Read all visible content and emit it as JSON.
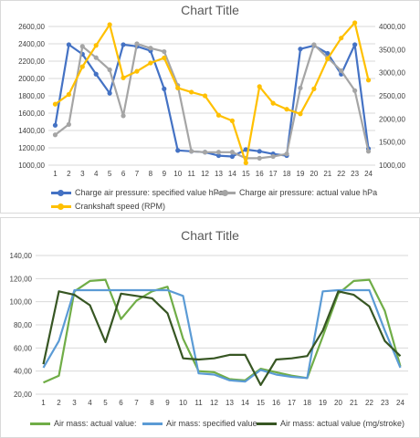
{
  "charts": [
    {
      "title": "Chart Title",
      "legend": [
        {
          "label": "Charge air pressure: specified value  hPa",
          "color": "#4472c4",
          "marker": true
        },
        {
          "label": "Charge air pressure: actual value  hPa",
          "color": "#a5a5a5",
          "marker": true
        },
        {
          "label": "Crankshaft speed (RPM)",
          "color": "#ffc000",
          "marker": true
        }
      ]
    },
    {
      "title": "Chart Title",
      "legend": [
        {
          "label": "Air mass: actual value:",
          "color": "#70ad47",
          "marker": false
        },
        {
          "label": "Air mass: specified value",
          "color": "#5b9bd5",
          "marker": false
        },
        {
          "label": "Air mass: actual value (mg/stroke)",
          "color": "#375623",
          "marker": false
        }
      ]
    }
  ],
  "chart_data": [
    {
      "type": "line",
      "title": "Chart Title",
      "x": [
        1,
        2,
        3,
        4,
        5,
        6,
        7,
        8,
        9,
        10,
        11,
        12,
        13,
        14,
        15,
        16,
        17,
        18,
        19,
        20,
        21,
        22,
        23,
        24
      ],
      "ylim": [
        1000,
        2600
      ],
      "y_ticks": [
        "1000,00",
        "1200,00",
        "1400,00",
        "1600,00",
        "1800,00",
        "2000,00",
        "2200,00",
        "2400,00",
        "2600,00"
      ],
      "y2lim": [
        1000,
        4000
      ],
      "y2_ticks": [
        "1000,00",
        "1500,00",
        "2000,00",
        "2500,00",
        "3000,00",
        "3500,00",
        "4000,00"
      ],
      "grid": true,
      "legend_position": "bottom",
      "series": [
        {
          "name": "Charge air pressure: specified value  hPa",
          "color": "#4472c4",
          "axis": "left",
          "values": [
            1460,
            2390,
            2280,
            2050,
            1830,
            2390,
            2370,
            2320,
            1880,
            1170,
            1160,
            1150,
            1110,
            1100,
            1180,
            1160,
            1130,
            1110,
            2340,
            2380,
            2290,
            2050,
            2390,
            1190
          ]
        },
        {
          "name": "Charge air pressure: actual value  hPa",
          "color": "#a5a5a5",
          "axis": "left",
          "values": [
            1350,
            1470,
            2370,
            2240,
            2100,
            1570,
            2400,
            2350,
            2310,
            1920,
            1160,
            1150,
            1150,
            1150,
            1080,
            1080,
            1100,
            1130,
            1890,
            2390,
            2240,
            2090,
            1860,
            1160
          ]
        },
        {
          "name": "Crankshaft speed (RPM)",
          "color": "#ffc000",
          "axis": "right",
          "values": [
            2320,
            2530,
            3130,
            3590,
            4040,
            2890,
            3030,
            3210,
            3320,
            2670,
            2580,
            2500,
            2080,
            1960,
            1050,
            2700,
            2340,
            2210,
            2110,
            2650,
            3300,
            3750,
            4080,
            2840
          ]
        }
      ]
    },
    {
      "type": "line",
      "title": "Chart Title",
      "x": [
        1,
        2,
        3,
        4,
        5,
        6,
        7,
        8,
        9,
        10,
        11,
        12,
        13,
        14,
        15,
        16,
        17,
        18,
        19,
        20,
        21,
        22,
        23,
        24
      ],
      "ylim": [
        20,
        140
      ],
      "y_ticks": [
        "20,00",
        "40,00",
        "60,00",
        "80,00",
        "100,00",
        "120,00",
        "140,00"
      ],
      "grid": true,
      "legend_position": "bottom",
      "series": [
        {
          "name": "Air mass: actual value:",
          "color": "#70ad47",
          "values": [
            30,
            36,
            109,
            118,
            119,
            85,
            101,
            109,
            113,
            68,
            40,
            39,
            33,
            32,
            42,
            39,
            36,
            34,
            70,
            107,
            118,
            119,
            92,
            44
          ]
        },
        {
          "name": "Air mass: specified value",
          "color": "#5b9bd5",
          "values": [
            43,
            66,
            110,
            110,
            110,
            110,
            110,
            110,
            110,
            105,
            38,
            37,
            32,
            31,
            41,
            37,
            35,
            34,
            109,
            110,
            110,
            110,
            75,
            43
          ]
        },
        {
          "name": "Air mass: actual value (mg/stroke)",
          "color": "#375623",
          "values": [
            46,
            109,
            106,
            97,
            65,
            107,
            105,
            103,
            90,
            51,
            50,
            51,
            54,
            54,
            28,
            50,
            51,
            53,
            75,
            109,
            106,
            96,
            66,
            53
          ]
        }
      ]
    }
  ]
}
